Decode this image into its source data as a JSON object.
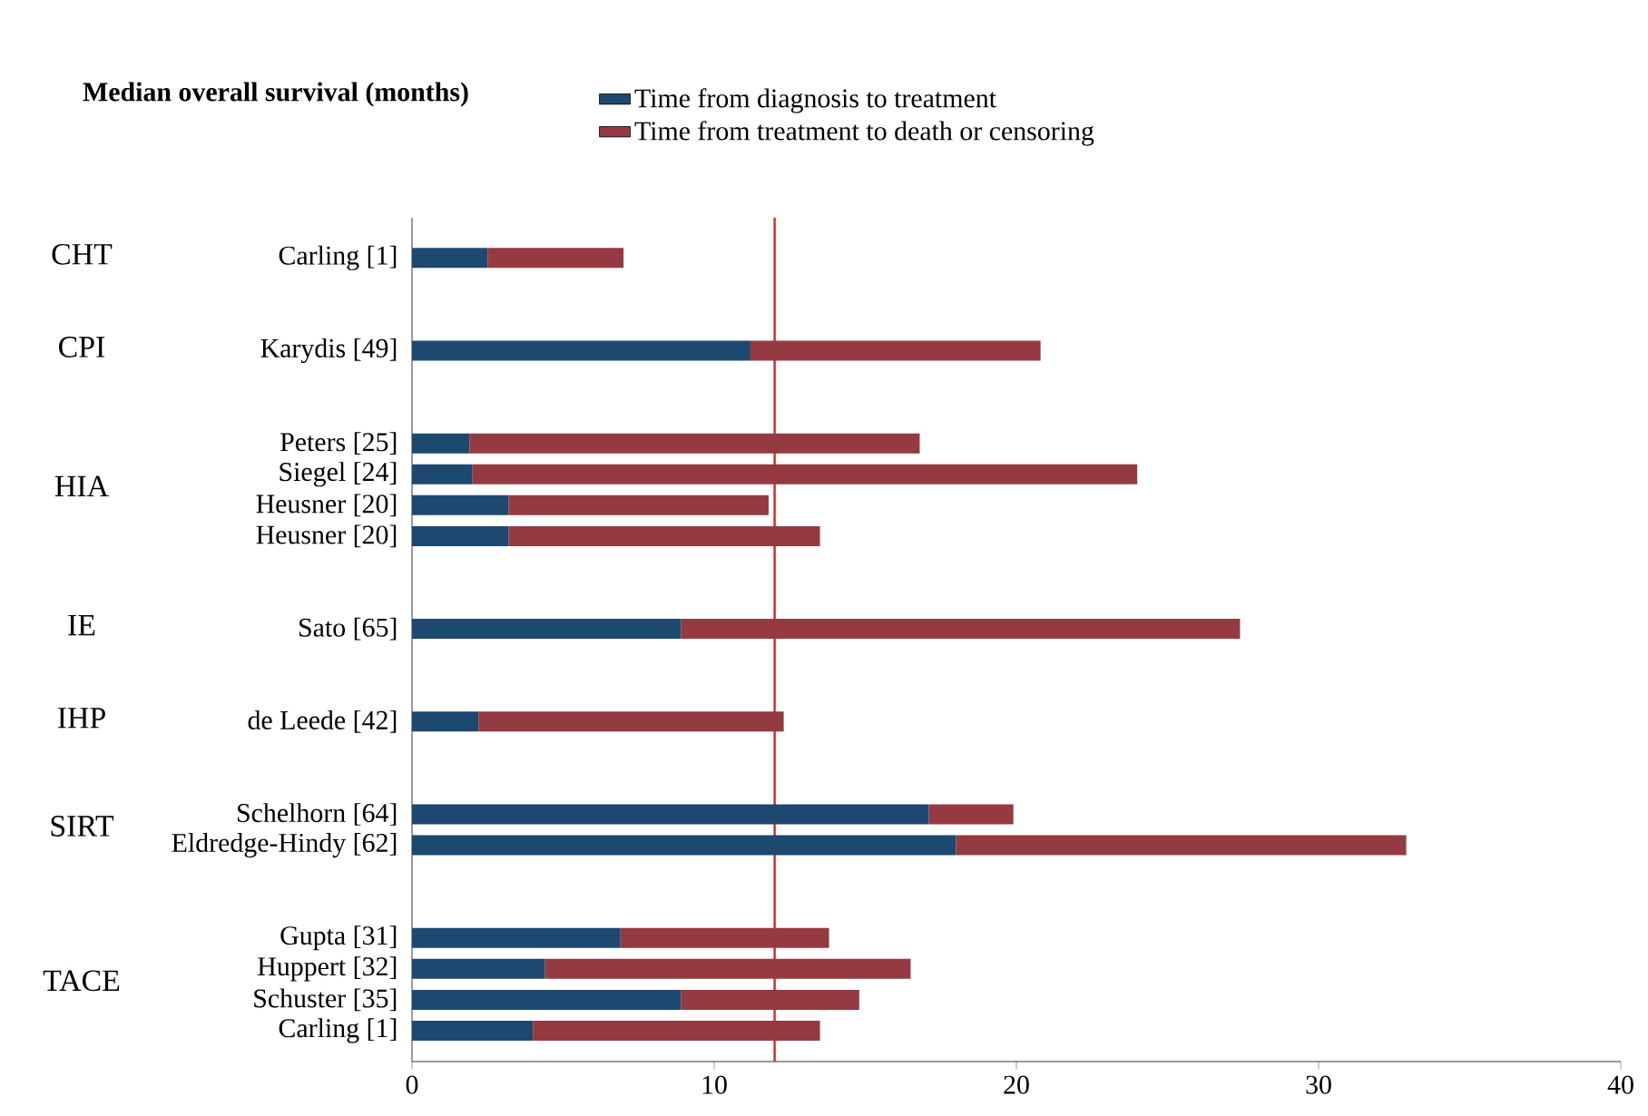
{
  "chart_data": {
    "type": "bar",
    "orientation": "horizontal",
    "stacked": true,
    "title": "Median overall survival (months)",
    "categories": [
      "Carling [1]",
      null,
      null,
      "Karydis [49]",
      null,
      null,
      "Peters [25]",
      "Siegel [24]",
      "Heusner [20]",
      "Heusner [20]",
      null,
      null,
      "Sato [65]",
      null,
      null,
      "de Leede [42]",
      null,
      null,
      "Schelhorn [64]",
      "Eldredge-Hindy [62]",
      null,
      null,
      "Gupta [31]",
      "Huppert [32]",
      "Schuster [35]",
      "Carling [1]"
    ],
    "series": [
      {
        "name": "Time from diagnosis to treatment",
        "color": "#1d4971",
        "values": [
          2.5,
          null,
          null,
          11.2,
          null,
          null,
          1.9,
          2.0,
          3.2,
          3.2,
          null,
          null,
          8.9,
          null,
          null,
          2.2,
          null,
          null,
          17.1,
          18.0,
          null,
          null,
          6.9,
          4.4,
          8.9,
          4.0
        ]
      },
      {
        "name": "Time from treatment to death or censoring",
        "color": "#953a40",
        "values": [
          4.5,
          null,
          null,
          9.6,
          null,
          null,
          14.9,
          22.0,
          8.6,
          10.3,
          null,
          null,
          18.5,
          null,
          null,
          10.1,
          null,
          null,
          2.8,
          14.9,
          null,
          null,
          6.9,
          12.1,
          5.9,
          9.5
        ]
      }
    ],
    "annotations": [
      "CHT",
      "CPI",
      "HIA",
      "IE",
      "IHP",
      "SIRT",
      "TACE"
    ],
    "xlim": [
      0,
      40
    ],
    "xticks": [
      0,
      10,
      20,
      30,
      40
    ],
    "ref_lines": [
      {
        "axis": "x",
        "value": 12,
        "color": "#e3211c"
      }
    ],
    "legend": "top"
  }
}
